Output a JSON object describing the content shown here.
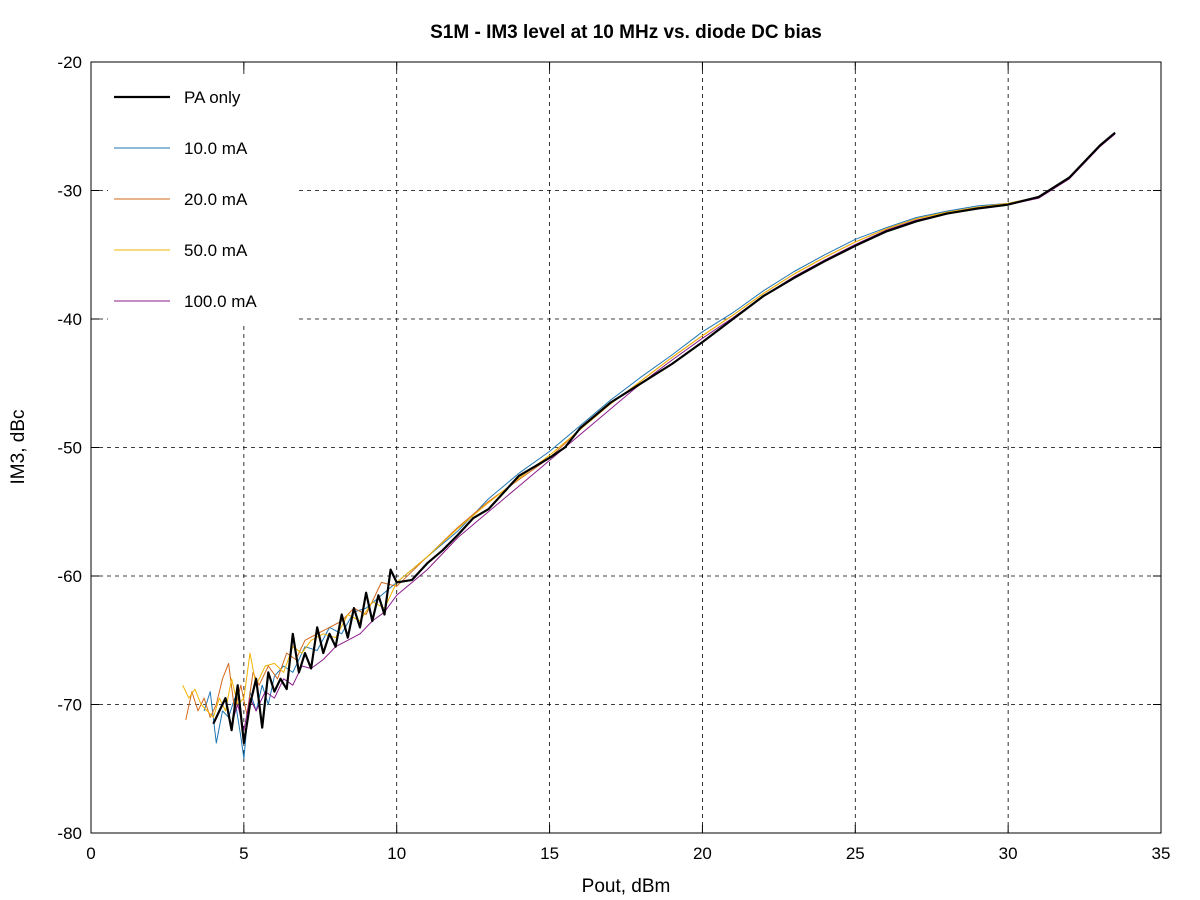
{
  "chart_data": {
    "type": "line",
    "title": "S1M - IM3 level at 10 MHz vs. diode DC bias",
    "xlabel": "Pout, dBm",
    "ylabel": "IM3, dBc",
    "xlim": [
      0,
      35
    ],
    "ylim": [
      -80,
      -20
    ],
    "x_ticks": [
      0,
      5,
      10,
      15,
      20,
      25,
      30,
      35
    ],
    "y_ticks": [
      -80,
      -70,
      -60,
      -50,
      -40,
      -30,
      -20
    ],
    "grid": true,
    "legend_position": "top-left",
    "series": [
      {
        "name": "PA only",
        "color": "#000000",
        "x": [
          4.0,
          4.2,
          4.4,
          4.6,
          4.8,
          5.0,
          5.2,
          5.4,
          5.6,
          5.8,
          6.0,
          6.2,
          6.4,
          6.6,
          6.8,
          7.0,
          7.2,
          7.4,
          7.6,
          7.8,
          8.0,
          8.2,
          8.4,
          8.6,
          8.8,
          9.0,
          9.2,
          9.4,
          9.6,
          9.8,
          10.0,
          10.5,
          11,
          11.5,
          12,
          12.5,
          13,
          13.5,
          14,
          14.5,
          15,
          15.5,
          16,
          17,
          18,
          19,
          20,
          21,
          22,
          23,
          24,
          25,
          26,
          27,
          28,
          29,
          30,
          31,
          32,
          33,
          33.5
        ],
        "y": [
          -71.5,
          -70.5,
          -69.5,
          -72.0,
          -68.5,
          -73.0,
          -70.0,
          -68.0,
          -71.8,
          -67.5,
          -69.0,
          -68.0,
          -68.8,
          -64.5,
          -67.5,
          -66.0,
          -67.2,
          -64.0,
          -66.0,
          -64.5,
          -65.5,
          -63.0,
          -64.8,
          -62.5,
          -64.0,
          -61.3,
          -63.5,
          -61.5,
          -63.0,
          -59.5,
          -60.5,
          -60.3,
          -59.0,
          -58.0,
          -56.8,
          -55.5,
          -54.8,
          -53.5,
          -52.2,
          -51.5,
          -50.8,
          -50.0,
          -48.5,
          -46.5,
          -45.0,
          -43.5,
          -41.8,
          -40.0,
          -38.2,
          -36.8,
          -35.5,
          -34.3,
          -33.2,
          -32.4,
          -31.8,
          -31.4,
          -31.1,
          -30.5,
          -29.0,
          -26.5,
          -25.5
        ]
      },
      {
        "name": "10.0 mA",
        "color": "#1f77b4",
        "x": [
          3.7,
          3.9,
          4.1,
          4.3,
          4.5,
          4.7,
          4.9,
          5.0,
          5.2,
          5.4,
          5.6,
          5.8,
          6.0,
          6.3,
          6.6,
          7.0,
          7.4,
          7.8,
          8.2,
          8.6,
          9.0,
          9.5,
          10.0,
          11,
          12,
          13,
          14,
          15,
          16,
          17,
          18,
          19,
          20,
          21,
          22,
          23,
          24,
          25,
          26,
          27,
          28,
          29,
          30,
          31,
          32,
          33,
          33.5
        ],
        "y": [
          -70.5,
          -69.0,
          -73.0,
          -70.5,
          -71.0,
          -69.5,
          -72.5,
          -74.2,
          -69.0,
          -70.5,
          -68.5,
          -70.0,
          -67.8,
          -67.0,
          -67.5,
          -65.5,
          -65.8,
          -64.0,
          -64.5,
          -62.8,
          -62.5,
          -61.5,
          -60.5,
          -58.5,
          -56.5,
          -54.0,
          -52.0,
          -50.3,
          -48.3,
          -46.3,
          -44.5,
          -42.8,
          -41.0,
          -39.5,
          -37.8,
          -36.3,
          -35.0,
          -33.8,
          -32.9,
          -32.1,
          -31.6,
          -31.2,
          -31.0,
          -30.5,
          -29.0,
          -26.5,
          -25.5
        ]
      },
      {
        "name": "20.0 mA",
        "color": "#d2691e",
        "x": [
          3.1,
          3.3,
          3.5,
          3.7,
          3.9,
          4.1,
          4.3,
          4.5,
          4.7,
          4.9,
          5.1,
          5.3,
          5.5,
          5.8,
          6.1,
          6.4,
          6.7,
          7.0,
          7.4,
          7.8,
          8.2,
          8.6,
          9.0,
          9.5,
          10.0,
          11,
          12,
          13,
          14,
          15,
          16,
          17,
          18,
          19,
          20,
          21,
          22,
          23,
          24,
          25,
          26,
          27,
          28,
          29,
          30,
          31,
          32,
          33,
          33.5
        ],
        "y": [
          -71.2,
          -69.0,
          -70.5,
          -69.5,
          -71.0,
          -70.0,
          -68.0,
          -66.8,
          -70.5,
          -68.5,
          -70.8,
          -67.5,
          -68.5,
          -67.0,
          -68.0,
          -66.0,
          -66.5,
          -65.0,
          -64.5,
          -64.0,
          -63.5,
          -62.5,
          -63.0,
          -60.5,
          -60.8,
          -58.5,
          -56.2,
          -54.2,
          -52.5,
          -50.8,
          -48.6,
          -46.6,
          -44.8,
          -43.0,
          -41.3,
          -39.7,
          -38.0,
          -36.5,
          -35.2,
          -34.0,
          -33.0,
          -32.2,
          -31.7,
          -31.3,
          -31.0,
          -30.5,
          -29.0,
          -26.5,
          -25.5
        ]
      },
      {
        "name": "50.0 mA",
        "color": "#f0b400",
        "x": [
          3.0,
          3.2,
          3.4,
          3.6,
          3.8,
          4.0,
          4.2,
          4.4,
          4.6,
          4.8,
          5.0,
          5.2,
          5.4,
          5.7,
          6.0,
          6.3,
          6.6,
          6.9,
          7.2,
          7.6,
          8.0,
          8.4,
          8.8,
          9.2,
          9.6,
          10.0,
          11,
          12,
          13,
          14,
          15,
          16,
          17,
          18,
          19,
          20,
          21,
          22,
          23,
          24,
          25,
          26,
          27,
          28,
          29,
          30,
          31,
          32,
          33,
          33.5
        ],
        "y": [
          -68.5,
          -69.5,
          -68.8,
          -70.0,
          -70.5,
          -71.0,
          -69.5,
          -70.5,
          -68.0,
          -70.0,
          -69.5,
          -66.0,
          -68.5,
          -67.0,
          -66.8,
          -67.5,
          -65.5,
          -66.0,
          -65.0,
          -64.5,
          -64.8,
          -63.0,
          -63.5,
          -62.0,
          -62.5,
          -60.5,
          -58.5,
          -56.3,
          -54.3,
          -52.4,
          -50.6,
          -48.6,
          -46.6,
          -44.8,
          -43.0,
          -41.3,
          -39.7,
          -38.0,
          -36.5,
          -35.2,
          -34.0,
          -33.0,
          -32.2,
          -31.7,
          -31.3,
          -31.0,
          -30.5,
          -29.0,
          -26.5,
          -25.5
        ]
      },
      {
        "name": "100.0 mA",
        "color": "#8b1a8b",
        "x": [
          4.6,
          4.8,
          5.0,
          5.2,
          5.4,
          5.7,
          6.0,
          6.3,
          6.6,
          6.9,
          7.2,
          7.6,
          8.0,
          8.4,
          8.8,
          9.2,
          9.6,
          10.0,
          11,
          12,
          13,
          14,
          15,
          16,
          17,
          18,
          19,
          20,
          21,
          22,
          23,
          24,
          25,
          26,
          27,
          28,
          29,
          30,
          31,
          32,
          33,
          33.5
        ],
        "y": [
          -71.5,
          -70.0,
          -72.0,
          -69.5,
          -70.5,
          -69.0,
          -69.5,
          -68.0,
          -68.5,
          -67.0,
          -67.2,
          -66.5,
          -65.5,
          -65.0,
          -64.5,
          -63.5,
          -62.8,
          -61.5,
          -59.5,
          -57.0,
          -55.0,
          -53.0,
          -51.0,
          -49.0,
          -47.0,
          -45.0,
          -43.2,
          -41.5,
          -39.9,
          -38.2,
          -36.7,
          -35.4,
          -34.2,
          -33.1,
          -32.3,
          -31.8,
          -31.4,
          -31.1,
          -30.6,
          -29.1,
          -26.6,
          -25.6
        ]
      }
    ]
  }
}
